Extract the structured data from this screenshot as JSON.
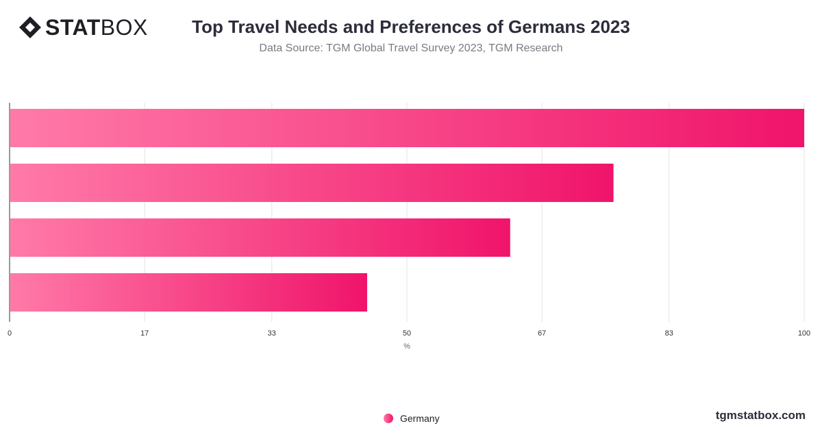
{
  "brand": {
    "bold": "STAT",
    "light": "BOX",
    "website": "tgmstatbox.com"
  },
  "header": {
    "title": "Top Travel Needs and Preferences of Germans 2023",
    "subtitle": "Data Source: TGM Global Travel Survey 2023, TGM Research"
  },
  "legend": {
    "items": [
      "Germany"
    ]
  },
  "colors": {
    "bar_start": "#ff7aa8",
    "bar_end": "#f0146a"
  },
  "chart_data": {
    "type": "bar",
    "orientation": "horizontal",
    "title": "Top Travel Needs and Preferences of Germans 2023",
    "subtitle": "Data Source: TGM Global Travel Survey 2023, TGM Research",
    "xlabel": "%",
    "ylabel": "",
    "xlim": [
      0,
      100
    ],
    "xticks": [
      "0",
      "17",
      "33",
      "50",
      "67",
      "83",
      "100"
    ],
    "grid": true,
    "legend_position": "bottom",
    "series": [
      {
        "name": "Germany",
        "values": [
          100,
          76,
          63,
          45
        ]
      }
    ]
  }
}
